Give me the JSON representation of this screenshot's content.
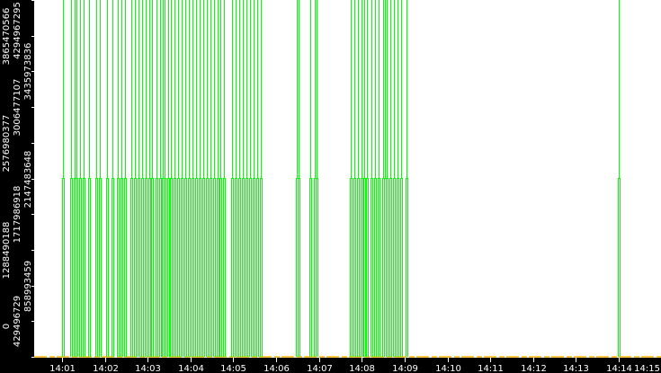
{
  "chart_data": {
    "type": "line",
    "title": "",
    "xlabel": "",
    "ylabel": "",
    "grid": false,
    "colors": {
      "series_main": "#00ff00",
      "series_baseline": "#ffb000",
      "axis_bg": "#000000",
      "axis_text": "#ffffff",
      "plot_bg": "#ffffff"
    },
    "x_ticks": [
      "14:01",
      "14:02",
      "14:03",
      "14:04",
      "14:05",
      "14:06",
      "14:07",
      "14:08",
      "14:09",
      "14:10",
      "14:11",
      "14:12",
      "14:13",
      "14:14",
      "14:15"
    ],
    "x_range": [
      "14:00:06",
      "14:15:00"
    ],
    "y_ticks": [
      "0",
      "429496729",
      "858993459",
      "1288490188",
      "1717986918",
      "2147483648",
      "2576980377",
      "3006477107",
      "3435973836",
      "3865470566",
      "4294967295"
    ],
    "ylim": [
      0,
      4294967295
    ],
    "series": [
      {
        "step_value": 2147483648,
        "peak_value": 4294967295,
        "events": [
          "14:01:01",
          "14:01:13",
          "14:01:18",
          "14:01:20",
          "14:01:25",
          "14:01:30",
          "14:01:38",
          "14:01:48",
          "14:01:53",
          "14:02:03",
          "14:02:11",
          "14:02:18",
          "14:02:23",
          "14:02:28",
          "14:02:37",
          "14:02:42",
          "14:02:47",
          "14:02:52",
          "14:02:57",
          "14:03:02",
          "14:03:06",
          "14:03:12",
          "14:03:17",
          "14:03:21",
          "14:03:24",
          "14:03:29",
          "14:03:33",
          "14:03:38",
          "14:03:42",
          "14:03:48",
          "14:03:53",
          "14:03:58",
          "14:04:03",
          "14:04:08",
          "14:04:13",
          "14:04:18",
          "14:04:23",
          "14:04:28",
          "14:04:33",
          "14:04:38",
          "14:04:42",
          "14:04:47",
          "14:04:58",
          "14:05:03",
          "14:05:08",
          "14:05:13",
          "14:05:18",
          "14:05:23",
          "14:05:28",
          "14:05:33",
          "14:05:38",
          "14:06:29",
          "14:06:31",
          "14:06:48",
          "14:06:54",
          "14:06:56",
          "14:07:45",
          "14:07:49",
          "14:07:54",
          "14:07:59",
          "14:08:04",
          "14:08:07",
          "14:08:14",
          "14:08:19",
          "14:08:24",
          "14:08:30",
          "14:08:32",
          "14:08:35",
          "14:08:40",
          "14:08:45",
          "14:08:50",
          "14:08:55",
          "14:09:03",
          "14:14:00"
        ]
      },
      {
        "baseline_value": 0
      }
    ]
  }
}
